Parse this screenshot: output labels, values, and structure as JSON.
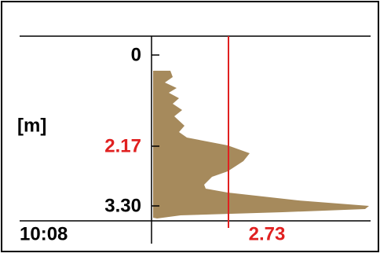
{
  "axis": {
    "unit": "[m]",
    "ticks": [
      "0",
      "2.17",
      "3.30"
    ]
  },
  "time": "10:08",
  "cursor_value": "2.73"
}
